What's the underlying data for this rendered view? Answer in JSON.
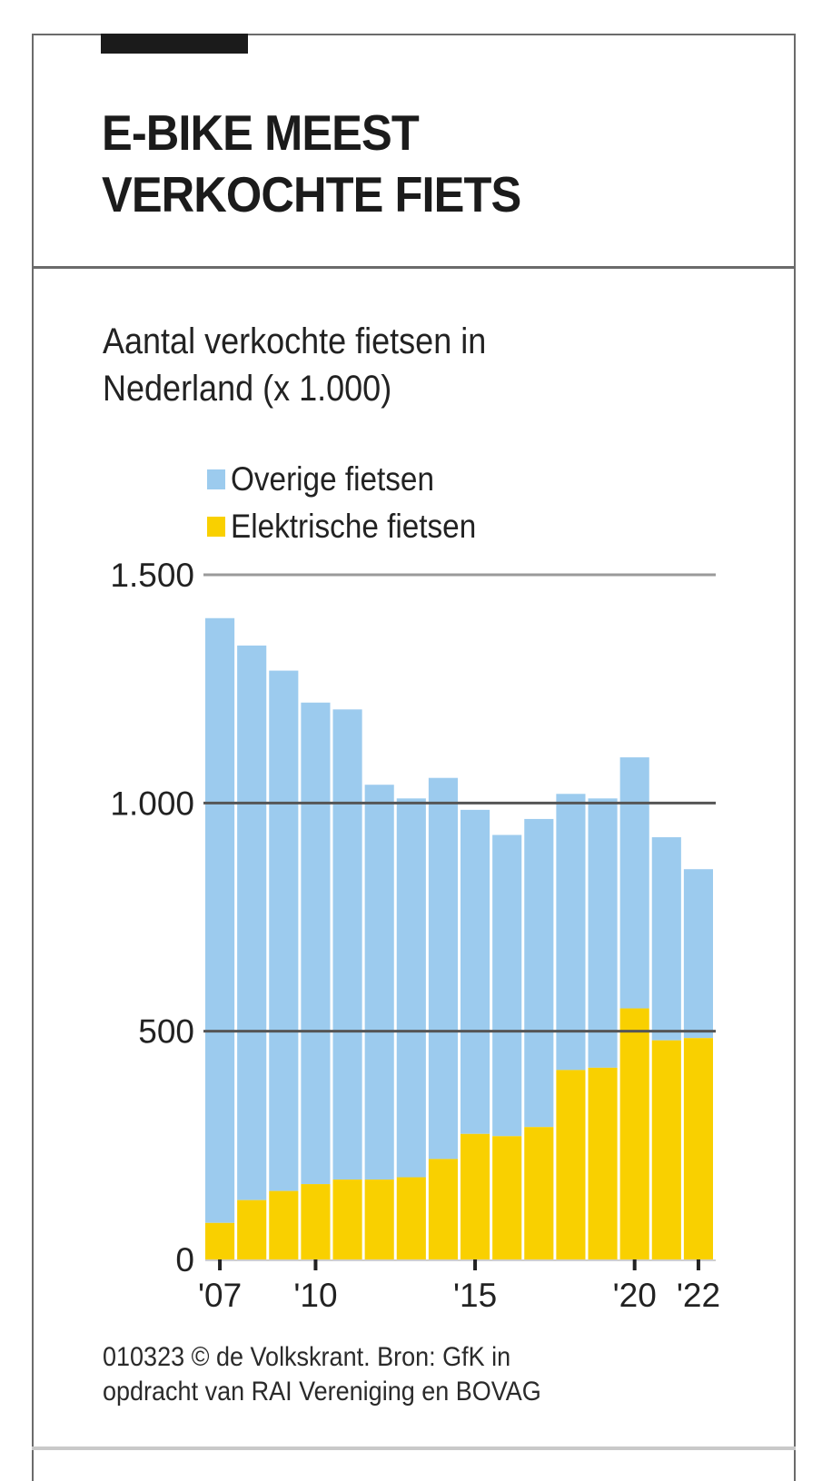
{
  "header": {
    "headline_line1": "E-BIKE MEEST",
    "headline_line2": "VERKOCHTE FIETS"
  },
  "subtitle": {
    "line1": "Aantal verkochte fietsen in",
    "line2": "Nederland (x 1.000)"
  },
  "colors": {
    "overige": "#9ccbee",
    "elektrisch": "#f9d000",
    "gridline": "#555555",
    "text": "#1b1b1b"
  },
  "chart_data": {
    "type": "bar",
    "stacked": true,
    "title": "Aantal verkochte fietsen in Nederland (x 1.000)",
    "xlabel": "",
    "ylabel": "",
    "x": [
      2007,
      2008,
      2009,
      2010,
      2011,
      2012,
      2013,
      2014,
      2015,
      2016,
      2017,
      2018,
      2019,
      2020,
      2021,
      2022
    ],
    "series": [
      {
        "name": "Elektrische fietsen",
        "color": "#f9d000",
        "values": [
          80,
          130,
          150,
          165,
          175,
          175,
          180,
          220,
          275,
          270,
          290,
          415,
          420,
          550,
          480,
          485
        ]
      },
      {
        "name": "Overige fietsen",
        "color": "#9ccbee",
        "values": [
          1325,
          1215,
          1140,
          1055,
          1030,
          865,
          830,
          835,
          710,
          660,
          675,
          605,
          590,
          550,
          445,
          370
        ]
      }
    ],
    "totals": [
      1405,
      1345,
      1290,
      1220,
      1205,
      1040,
      1010,
      1055,
      985,
      930,
      965,
      1020,
      1010,
      1100,
      925,
      855
    ],
    "ylim": [
      0,
      1500
    ],
    "yticks": [
      {
        "value": 0,
        "label": "0"
      },
      {
        "value": 500,
        "label": "500"
      },
      {
        "value": 1000,
        "label": "1.000"
      },
      {
        "value": 1500,
        "label": "1.500"
      }
    ],
    "xticks": [
      {
        "year": 2007,
        "label": "'07"
      },
      {
        "year": 2010,
        "label": "'10"
      },
      {
        "year": 2015,
        "label": "'15"
      },
      {
        "year": 2020,
        "label": "'20"
      },
      {
        "year": 2022,
        "label": "'22"
      }
    ],
    "legend": {
      "placement": "top-left",
      "entries": [
        "Overige fietsen",
        "Elektrische fietsen"
      ]
    },
    "grid": true
  },
  "footer": {
    "line1": "010323 © de Volkskrant. Bron: GfK in",
    "line2": "opdracht van RAI Vereniging en BOVAG"
  }
}
